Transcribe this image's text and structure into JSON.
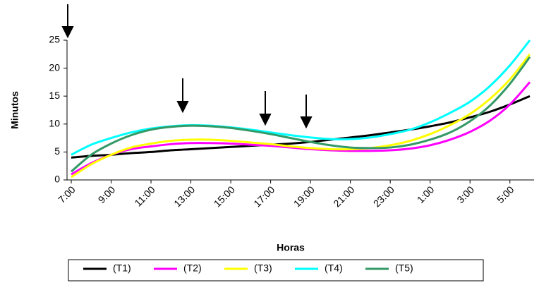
{
  "chart_data": {
    "type": "line",
    "y_label": "Minutos",
    "x_label": "Horas",
    "categories": [
      "7:00",
      null,
      "9:00",
      null,
      "11:00",
      null,
      "13:00",
      null,
      "15:00",
      null,
      "17:00",
      null,
      "19:00",
      null,
      "21:00",
      null,
      "23:00",
      null,
      "1:00",
      null,
      "3:00",
      null,
      "5:00",
      null
    ],
    "ylim": [
      0,
      25
    ],
    "yticks": [
      0,
      5,
      10,
      15,
      20,
      25
    ],
    "grid": false,
    "smooth": true,
    "legend": "bottom",
    "series": [
      {
        "name": "(T1)",
        "color": "#000000",
        "values": [
          4.0,
          4.3,
          4.5,
          4.8,
          5.0,
          5.3,
          5.5,
          5.7,
          5.9,
          6.1,
          6.3,
          6.5,
          6.8,
          7.2,
          7.6,
          8.0,
          8.5,
          9.0,
          9.6,
          10.3,
          11.2,
          12.2,
          13.5,
          15.0
        ]
      },
      {
        "name": "(T2)",
        "color": "#ff00ff",
        "values": [
          1.0,
          3.0,
          4.5,
          5.5,
          6.0,
          6.4,
          6.6,
          6.6,
          6.5,
          6.3,
          6.1,
          5.8,
          5.5,
          5.3,
          5.2,
          5.2,
          5.3,
          5.6,
          6.2,
          7.2,
          8.6,
          10.6,
          13.5,
          17.5
        ]
      },
      {
        "name": "(T3)",
        "color": "#ffff00",
        "values": [
          0.5,
          2.8,
          4.5,
          5.8,
          6.5,
          7.0,
          7.2,
          7.2,
          7.0,
          6.7,
          6.4,
          6.0,
          5.7,
          5.5,
          5.5,
          5.7,
          6.2,
          7.0,
          8.2,
          9.8,
          11.8,
          14.5,
          18.0,
          22.5
        ]
      },
      {
        "name": "(T4)",
        "color": "#00ffff",
        "values": [
          4.5,
          6.3,
          7.5,
          8.5,
          9.2,
          9.6,
          9.8,
          9.7,
          9.4,
          9.0,
          8.5,
          8.0,
          7.6,
          7.3,
          7.3,
          7.6,
          8.2,
          9.0,
          10.3,
          12.0,
          14.0,
          16.8,
          20.5,
          25.0
        ]
      },
      {
        "name": "(T5)",
        "color": "#339966",
        "values": [
          1.5,
          4.5,
          6.5,
          8.0,
          9.0,
          9.5,
          9.7,
          9.6,
          9.3,
          8.8,
          8.2,
          7.5,
          6.8,
          6.2,
          5.8,
          5.7,
          5.8,
          6.3,
          7.2,
          8.5,
          10.5,
          13.3,
          17.2,
          22.0
        ]
      }
    ]
  }
}
